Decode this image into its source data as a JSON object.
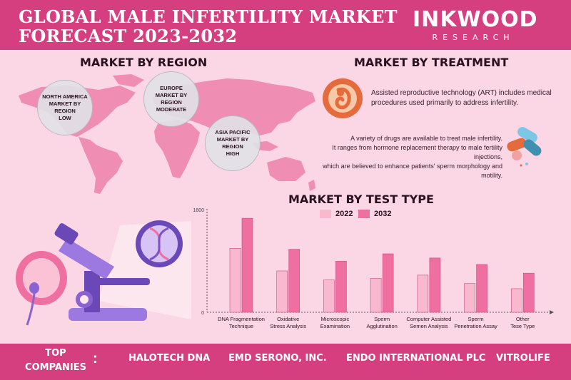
{
  "header": {
    "title_line1": "GLOBAL MALE INFERTILITY MARKET",
    "title_line2": "FORECAST 2023-2032",
    "logo_main": "INKWOOD",
    "logo_sub": "RESEARCH"
  },
  "region": {
    "title": "MARKET BY REGION",
    "bubbles": [
      {
        "l1": "NORTH AMERICA",
        "l2": "MARKET BY REGION",
        "l3": "LOW"
      },
      {
        "l1": "EUROPE",
        "l2": "MARKET BY REGION",
        "l3": "MODERATE"
      },
      {
        "l1": "ASIA PACIFIC",
        "l2": "MARKET BY REGION",
        "l3": "HIGH"
      }
    ]
  },
  "treatment": {
    "title": "MARKET BY TREATMENT",
    "art_l1": "Assisted reproductive technology (ART) includes medical",
    "art_l2": "procedures used primarily to address infertility.",
    "drug_l1": "A variety of drugs are available to treat male infertility.",
    "drug_l2": "It ranges from hormone replacement therapy to male fertility injections,",
    "drug_l3": "which are believed to enhance patients' sperm morphology and motility."
  },
  "colors": {
    "brand": "#d63f7f",
    "bg": "#fbd6e4",
    "bar_2022": "#f8b9cf",
    "bar_2032": "#ee6fa0",
    "map": "#f08db3"
  },
  "chart_data": {
    "type": "bar",
    "title": "MARKET BY TEST TYPE",
    "categories": [
      [
        "DNA Fragmentation",
        "Technique"
      ],
      [
        "Oxidative",
        "Stress Analysis"
      ],
      [
        "Microscopic",
        "Examination"
      ],
      [
        "Sperm",
        "Agglutination"
      ],
      [
        "Computer Assisted",
        "Semen Analysis"
      ],
      [
        "Sperm",
        "Penetration Assay"
      ],
      [
        "Other",
        "Tese Type"
      ]
    ],
    "series": [
      {
        "name": "2022",
        "values": [
          990,
          640,
          500,
          525,
          575,
          445,
          365
        ]
      },
      {
        "name": "2032",
        "values": [
          1455,
          975,
          790,
          905,
          840,
          740,
          605
        ]
      }
    ],
    "ylim": [
      0,
      1600
    ],
    "yticks": [
      "0",
      "1600"
    ],
    "legend": "top-center"
  },
  "footer": {
    "top_line1": "TOP",
    "top_line2": "COMPANIES",
    "colon": ":",
    "companies": [
      "HALOTECH DNA",
      "EMD SERONO, INC.",
      "ENDO INTERNATIONAL PLC",
      "VITROLIFE"
    ]
  }
}
